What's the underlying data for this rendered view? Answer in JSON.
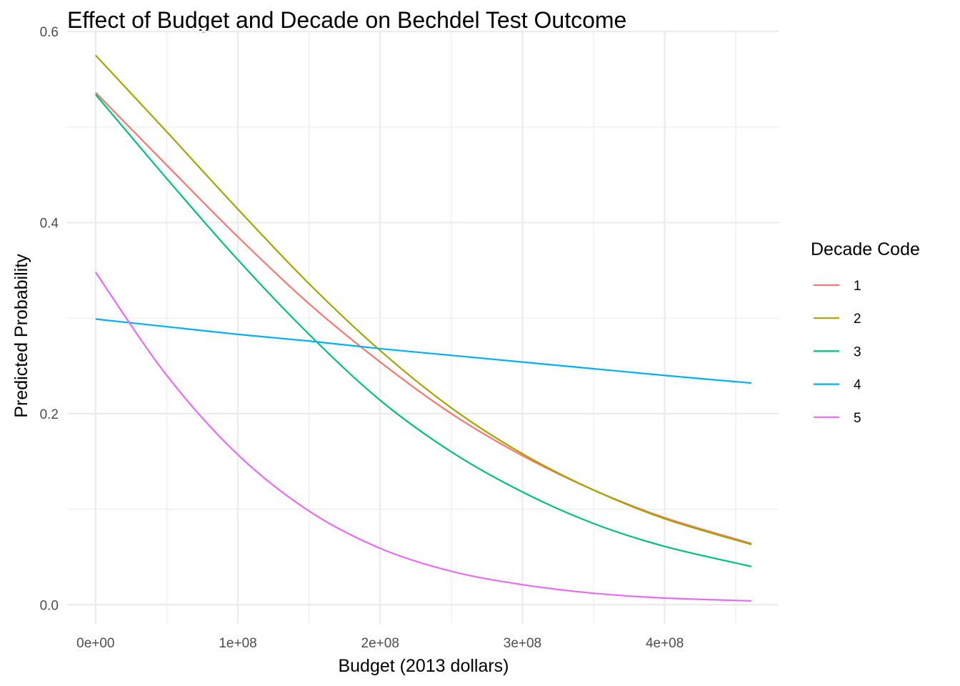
{
  "chart_data": {
    "type": "line",
    "title": "Effect of Budget and Decade on Bechdel Test Outcome",
    "xlabel": "Budget (2013 dollars)",
    "ylabel": "Predicted Probability",
    "xlim": [
      -20000000,
      480000000
    ],
    "ylim": [
      -0.02,
      0.6
    ],
    "x_ticks": [
      0,
      100000000,
      200000000,
      300000000,
      400000000
    ],
    "x_tick_labels": [
      "0e+00",
      "1e+08",
      "2e+08",
      "3e+08",
      "4e+08"
    ],
    "x_minor_ticks": [
      50000000,
      150000000,
      250000000,
      350000000,
      450000000
    ],
    "y_ticks": [
      0.0,
      0.2,
      0.4,
      0.6
    ],
    "y_tick_labels": [
      "0.0",
      "0.2",
      "0.4",
      "0.6"
    ],
    "y_minor_ticks": [
      0.1,
      0.3,
      0.5
    ],
    "grid": true,
    "legend": {
      "title": "Decade Code",
      "position": "right"
    },
    "x": [
      0,
      50000000,
      100000000,
      150000000,
      200000000,
      250000000,
      300000000,
      350000000,
      400000000,
      461000000
    ],
    "series": [
      {
        "name": "1",
        "color": "#F8766D",
        "values": [
          0.536,
          0.46,
          0.385,
          0.315,
          0.254,
          0.2,
          0.156,
          0.12,
          0.091,
          0.064
        ]
      },
      {
        "name": "2",
        "color": "#A3A500",
        "values": [
          0.575,
          0.495,
          0.414,
          0.336,
          0.266,
          0.206,
          0.158,
          0.12,
          0.09,
          0.063
        ]
      },
      {
        "name": "3",
        "color": "#00BF7D",
        "values": [
          0.534,
          0.446,
          0.361,
          0.283,
          0.214,
          0.16,
          0.118,
          0.085,
          0.061,
          0.04
        ]
      },
      {
        "name": "4",
        "color": "#00B0F6",
        "values": [
          0.299,
          0.291,
          0.283,
          0.276,
          0.268,
          0.261,
          0.254,
          0.247,
          0.24,
          0.232
        ]
      },
      {
        "name": "5",
        "color": "#E76BF3",
        "values": [
          0.348,
          0.24,
          0.157,
          0.098,
          0.059,
          0.035,
          0.021,
          0.012,
          0.007,
          0.004
        ]
      }
    ]
  }
}
